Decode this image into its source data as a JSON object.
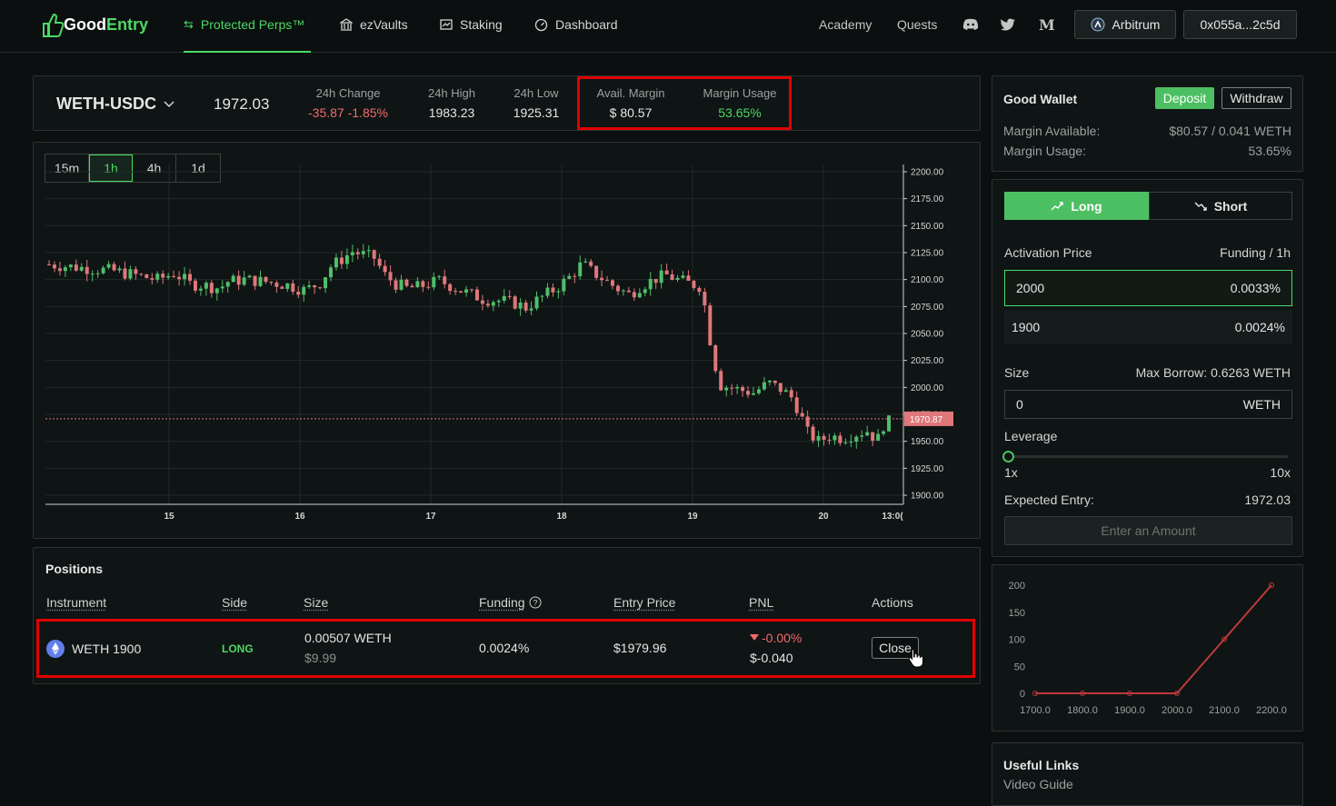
{
  "nav": {
    "logo_good": "Good",
    "logo_entry": "Entry",
    "items": [
      {
        "label": "Protected Perps™",
        "icon": "transfer-arrows-icon"
      },
      {
        "label": "ezVaults",
        "icon": "bank-icon"
      },
      {
        "label": "Staking",
        "icon": "chart-box-icon"
      },
      {
        "label": "Dashboard",
        "icon": "gauge-icon"
      }
    ],
    "academy": "Academy",
    "quests": "Quests",
    "network": "Arbitrum",
    "wallet": "0x055a...2c5d"
  },
  "ticker": {
    "pair": "WETH-USDC",
    "price": "1972.03",
    "change_label": "24h Change",
    "change_value": "-35.87 -1.85%",
    "high_label": "24h High",
    "high_value": "1983.23",
    "low_label": "24h Low",
    "low_value": "1925.31",
    "margin_label": "Avail. Margin",
    "margin_value": "$ 80.57",
    "usage_label": "Margin Usage",
    "usage_value": "53.65%"
  },
  "timeframes": [
    "15m",
    "1h",
    "4h",
    "1d"
  ],
  "selected_timeframe": "1h",
  "price_chart": {
    "y_ticks": [
      "2200.00",
      "2175.00",
      "2150.00",
      "2125.00",
      "2100.00",
      "2075.00",
      "2050.00",
      "2025.00",
      "2000.00",
      "1975.00",
      "1950.00",
      "1925.00",
      "1900.00"
    ],
    "x_ticks": [
      "15",
      "16",
      "17",
      "18",
      "19",
      "20",
      "13:0("
    ],
    "last_price": "1970.87",
    "colors": {
      "up": "#4fbf6a",
      "down": "#e0777a"
    }
  },
  "positions": {
    "title": "Positions",
    "headers": {
      "instrument": "Instrument",
      "side": "Side",
      "size": "Size",
      "funding": "Funding",
      "entry": "Entry Price",
      "pnl": "PNL",
      "actions": "Actions"
    },
    "rows": [
      {
        "instrument": "WETH 1900",
        "side": "LONG",
        "size": "0.00507 WETH",
        "size_usd": "$9.99",
        "funding": "0.0024%",
        "entry": "$1979.96",
        "pnl_pct": "-0.00%",
        "pnl_usd": "$-0.040",
        "action": "Close"
      }
    ]
  },
  "wallet": {
    "title": "Good Wallet",
    "deposit": "Deposit",
    "withdraw": "Withdraw",
    "margin_available_label": "Margin Available:",
    "margin_available_value": "$80.57 / 0.041 WETH",
    "margin_usage_label": "Margin Usage:",
    "margin_usage_value": "53.65%"
  },
  "trade": {
    "long": "Long",
    "short": "Short",
    "activation_label": "Activation Price",
    "funding_label": "Funding / 1h",
    "options": [
      {
        "price": "2000",
        "funding": "0.0033%"
      },
      {
        "price": "1900",
        "funding": "0.0024%"
      }
    ],
    "size_label": "Size",
    "max_borrow": "Max Borrow: 0.6263 WETH",
    "size_value": "0",
    "size_unit": "WETH",
    "leverage_label": "Leverage",
    "lev_min": "1x",
    "lev_max": "10x",
    "leverage_fraction": 0,
    "expected_label": "Expected Entry:",
    "expected_value": "1972.03",
    "submit": "Enter an Amount"
  },
  "payoff_chart": {
    "type": "line",
    "x": [
      "1700.0",
      "1800.0",
      "1900.0",
      "2000.0",
      "2100.0",
      "2200.0"
    ],
    "y": [
      0,
      0,
      0,
      0,
      100,
      200
    ],
    "y_ticks": [
      "200",
      "150",
      "100",
      "50",
      "0"
    ],
    "ylim": [
      0,
      200
    ]
  },
  "links": {
    "title": "Useful Links",
    "video": "Video Guide"
  }
}
